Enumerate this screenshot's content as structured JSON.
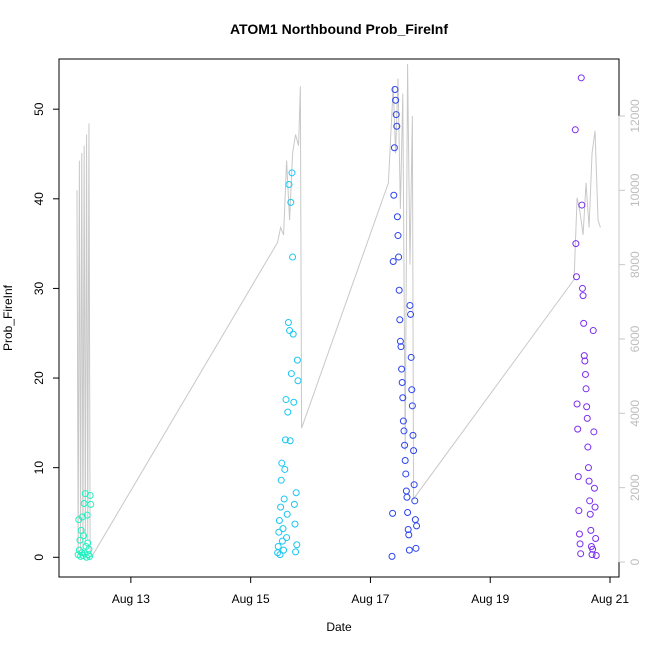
{
  "chart_data": {
    "type": "scatter",
    "title": "ATOM1 Northbound Prob_FireInf",
    "xlabel": "Date",
    "ylabel": "Prob_FireInf",
    "xlim": [
      11.8,
      21.15
    ],
    "ylim": [
      -2.2,
      55.6
    ],
    "y2lim": [
      -404,
      13533
    ],
    "xticks": [
      {
        "value": 13,
        "label": "Aug 13"
      },
      {
        "value": 15,
        "label": "Aug 15"
      },
      {
        "value": 17,
        "label": "Aug 17"
      },
      {
        "value": 19,
        "label": "Aug 19"
      },
      {
        "value": 21,
        "label": "Aug 21"
      }
    ],
    "yticks": [
      0,
      10,
      20,
      30,
      40,
      50
    ],
    "y2ticks": [
      0,
      2000,
      4000,
      6000,
      8000,
      10000,
      12000
    ],
    "y2color": "#c8c8c8",
    "series": [
      {
        "color": "#1ff2c0",
        "x": [
          12.12,
          12.13,
          12.14,
          12.15,
          12.16,
          12.17,
          12.18,
          12.19,
          12.2,
          12.21,
          12.22,
          12.23,
          12.24,
          12.25,
          12.26,
          12.27,
          12.28,
          12.29,
          12.3,
          12.31,
          12.32,
          12.33
        ],
        "values": [
          0.3,
          4.2,
          0.8,
          1.9,
          0.1,
          3.0,
          0.5,
          4.5,
          0.2,
          2.4,
          6.0,
          0.4,
          7.1,
          1.2,
          0.0,
          4.7,
          1.6,
          0.3,
          0.9,
          0.1,
          6.9,
          5.9
        ]
      },
      {
        "color": "#1cc6f2",
        "x": [
          15.45,
          15.46,
          15.47,
          15.48,
          15.49,
          15.5,
          15.51,
          15.52,
          15.53,
          15.54,
          15.55,
          15.56,
          15.57,
          15.58,
          15.59,
          15.6,
          15.61,
          15.62,
          15.63,
          15.64,
          15.65,
          15.66,
          15.67,
          15.68,
          15.69,
          15.7,
          15.71,
          15.72,
          15.73,
          15.74,
          15.75,
          15.76,
          15.77,
          15.78,
          15.79
        ],
        "values": [
          0.5,
          1.2,
          2.8,
          4.1,
          0.3,
          5.6,
          8.6,
          10.5,
          1.8,
          3.2,
          0.8,
          6.5,
          9.8,
          13.1,
          17.6,
          2.2,
          4.8,
          16.2,
          26.2,
          41.6,
          25.3,
          13.0,
          39.6,
          20.5,
          42.9,
          33.5,
          24.9,
          17.3,
          5.9,
          3.7,
          0.6,
          7.2,
          1.4,
          22.0,
          19.7
        ]
      },
      {
        "color": "#2c44ee",
        "x": [
          17.36,
          17.37,
          17.38,
          17.39,
          17.4,
          17.41,
          17.42,
          17.43,
          17.44,
          17.45,
          17.46,
          17.47,
          17.48,
          17.49,
          17.5,
          17.51,
          17.52,
          17.53,
          17.54,
          17.55,
          17.56,
          17.57,
          17.58,
          17.59,
          17.6,
          17.61,
          17.62,
          17.63,
          17.64,
          17.65,
          17.66,
          17.67,
          17.68,
          17.69,
          17.7,
          17.71,
          17.72,
          17.73,
          17.74,
          17.75,
          17.76,
          17.77
        ],
        "values": [
          0.1,
          4.9,
          33.0,
          40.4,
          45.7,
          52.2,
          51.0,
          49.4,
          48.1,
          38.0,
          35.9,
          33.5,
          29.8,
          26.5,
          24.1,
          23.5,
          21.0,
          19.5,
          17.8,
          15.2,
          14.1,
          12.5,
          10.8,
          9.3,
          7.4,
          6.7,
          5.0,
          3.1,
          2.5,
          0.8,
          28.1,
          27.1,
          22.3,
          18.7,
          16.9,
          13.6,
          11.9,
          8.1,
          6.3,
          4.2,
          1.0,
          3.5
        ]
      },
      {
        "color": "#7a2ef0",
        "x": [
          20.42,
          20.43,
          20.44,
          20.45,
          20.46,
          20.47,
          20.48,
          20.49,
          20.5,
          20.51,
          20.52,
          20.53,
          20.54,
          20.55,
          20.56,
          20.57,
          20.58,
          20.59,
          20.6,
          20.61,
          20.62,
          20.63,
          20.64,
          20.65,
          20.66,
          20.67,
          20.68,
          20.69,
          20.7,
          20.71,
          20.72,
          20.73,
          20.74,
          20.75,
          20.76,
          20.77
        ],
        "values": [
          47.7,
          35.0,
          31.3,
          17.1,
          14.3,
          9.0,
          5.2,
          2.6,
          1.5,
          0.4,
          53.5,
          39.3,
          30.0,
          29.2,
          26.1,
          22.5,
          21.9,
          20.4,
          18.8,
          16.8,
          15.5,
          12.3,
          10.0,
          8.5,
          6.3,
          4.8,
          3.0,
          1.2,
          0.3,
          0.9,
          25.3,
          14.0,
          7.7,
          5.6,
          2.1,
          0.2
        ]
      },
      {
        "type": "line",
        "axis": "y2",
        "color": "#c8c8c8",
        "x": [
          12.1,
          12.12,
          12.14,
          12.16,
          12.18,
          12.2,
          12.22,
          12.24,
          12.26,
          12.28,
          12.3,
          12.32,
          12.35,
          15.45,
          15.5,
          15.55,
          15.6,
          15.65,
          15.7,
          15.75,
          15.8,
          15.83,
          15.85,
          17.3,
          17.38,
          17.42,
          17.46,
          17.5,
          17.54,
          17.58,
          17.62,
          17.66,
          17.7,
          17.72,
          20.4,
          20.45,
          20.5,
          20.55,
          20.6,
          20.65,
          20.7,
          20.75,
          20.8,
          20.84
        ],
        "values": [
          10000,
          200,
          10800,
          300,
          11000,
          400,
          11200,
          500,
          11500,
          600,
          11800,
          300,
          150,
          8600,
          9000,
          8800,
          10800,
          9200,
          11000,
          11500,
          11200,
          12800,
          3600,
          10200,
          12800,
          11000,
          13000,
          9500,
          12600,
          3000,
          13400,
          8000,
          12000,
          1700,
          7600,
          9800,
          9400,
          8800,
          10200,
          9000,
          11000,
          11600,
          9200,
          9000
        ]
      }
    ]
  }
}
